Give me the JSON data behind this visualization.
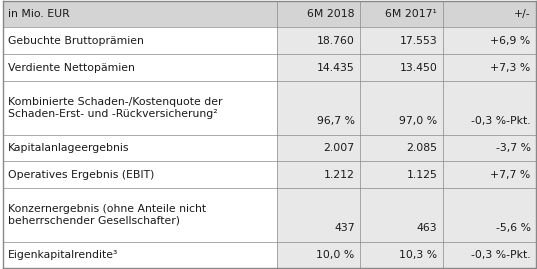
{
  "header": [
    "in Mio. EUR",
    "6M 2018",
    "6M 2017¹",
    "+/-"
  ],
  "rows": [
    [
      "Gebuchte Bruttoprämien",
      "18.760",
      "17.553",
      "+6,9 %"
    ],
    [
      "Verdiente Nettopämien",
      "14.435",
      "13.450",
      "+7,3 %"
    ],
    [
      "Kombinierte Schaden-/Kostenquote der\nSchaden-Erst- und -Rückversicherung²",
      "96,7 %",
      "97,0 %",
      "-0,3 %-Pkt."
    ],
    [
      "Kapitalanlageergebnis",
      "2.007",
      "2.085",
      "-3,7 %"
    ],
    [
      "Operatives Ergebnis (EBIT)",
      "1.212",
      "1.125",
      "+7,7 %"
    ],
    [
      "Konzernergebnis (ohne Anteile nicht\nbeherrschender Gesellschafter)",
      "437",
      "463",
      "-5,6 %"
    ],
    [
      "Eigenkapitalrendite³",
      "10,0 %",
      "10,3 %",
      "-0,3 %-Pkt."
    ]
  ],
  "col_ratios": [
    0.515,
    0.155,
    0.155,
    0.175
  ],
  "header_bg": "#d4d4d4",
  "col_bg": "#e8e8e8",
  "row_bg_white": "#ffffff",
  "border_color": "#888888",
  "text_color": "#1a1a1a",
  "font_size": 7.8,
  "row_heights_rel": [
    1.0,
    1.0,
    1.0,
    2.0,
    1.0,
    1.0,
    2.0,
    1.0
  ]
}
